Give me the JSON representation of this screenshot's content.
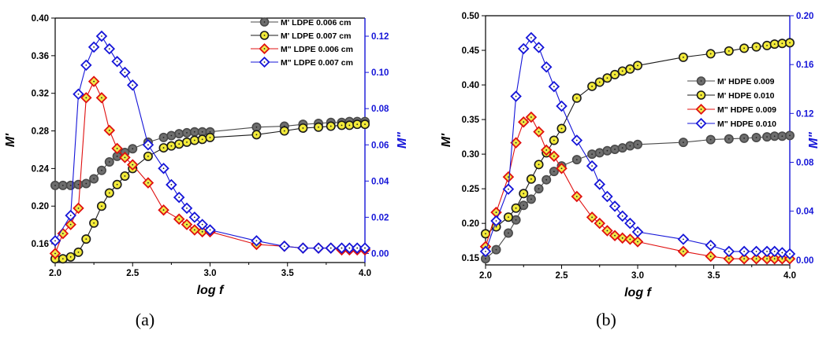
{
  "chart_data": [
    {
      "type": "line",
      "panel_label": "(a)",
      "xlabel": "log f",
      "ylabel_left": "M'",
      "ylabel_right": "M\"",
      "xlim": [
        2.0,
        4.0
      ],
      "ylim_left": [
        0.14,
        0.4
      ],
      "ylim_right": [
        -0.005,
        0.13
      ],
      "x_ticks": [
        "2.0",
        "2.5",
        "3.0",
        "3.5",
        "4.0"
      ],
      "x_tick_values": [
        2.0,
        2.5,
        3.0,
        3.5,
        4.0
      ],
      "y_left_ticks": [
        "0.16",
        "0.20",
        "0.24",
        "0.28",
        "0.32",
        "0.36",
        "0.40"
      ],
      "y_left_tick_values": [
        0.16,
        0.2,
        0.24,
        0.28,
        0.32,
        0.36,
        0.4
      ],
      "y_right_ticks": [
        "0.00",
        "0.02",
        "0.04",
        "0.06",
        "0.08",
        "0.10",
        "0.12"
      ],
      "y_right_tick_values": [
        0.0,
        0.02,
        0.04,
        0.06,
        0.08,
        0.1,
        0.12
      ],
      "legend_position": "top-right",
      "series": [
        {
          "name": "M' LDPE 0.006 cm",
          "axis": "left",
          "marker": "circle",
          "color": "#4a4a4a",
          "fill": "#6e6e6e",
          "x": [
            2.0,
            2.05,
            2.1,
            2.15,
            2.2,
            2.25,
            2.3,
            2.35,
            2.4,
            2.45,
            2.5,
            2.6,
            2.7,
            2.75,
            2.8,
            2.85,
            2.9,
            2.95,
            3.0,
            3.3,
            3.48,
            3.6,
            3.7,
            3.78,
            3.85,
            3.9,
            3.95,
            4.0
          ],
          "y": [
            0.222,
            0.222,
            0.222,
            0.223,
            0.224,
            0.229,
            0.238,
            0.247,
            0.253,
            0.257,
            0.261,
            0.268,
            0.273,
            0.275,
            0.277,
            0.278,
            0.279,
            0.279,
            0.279,
            0.284,
            0.285,
            0.287,
            0.288,
            0.289,
            0.289,
            0.29,
            0.29,
            0.29
          ]
        },
        {
          "name": "M' LDPE 0.007 cm",
          "axis": "left",
          "marker": "circle",
          "color": "#1a1a1a",
          "fill": "#f2ea3a",
          "x": [
            2.0,
            2.05,
            2.1,
            2.15,
            2.2,
            2.25,
            2.3,
            2.35,
            2.4,
            2.45,
            2.5,
            2.6,
            2.7,
            2.75,
            2.8,
            2.85,
            2.9,
            2.95,
            3.0,
            3.3,
            3.48,
            3.6,
            3.7,
            3.78,
            3.85,
            3.9,
            3.95,
            4.0
          ],
          "y": [
            0.144,
            0.144,
            0.146,
            0.151,
            0.165,
            0.182,
            0.2,
            0.214,
            0.223,
            0.232,
            0.24,
            0.253,
            0.262,
            0.264,
            0.266,
            0.268,
            0.27,
            0.271,
            0.273,
            0.276,
            0.28,
            0.283,
            0.284,
            0.285,
            0.286,
            0.286,
            0.287,
            0.287
          ]
        },
        {
          "name": "M\" LDPE 0.006 cm",
          "axis": "right",
          "marker": "diamond",
          "color": "#e01010",
          "fill": "#f0e84a",
          "x": [
            2.0,
            2.05,
            2.1,
            2.15,
            2.2,
            2.25,
            2.3,
            2.35,
            2.4,
            2.45,
            2.5,
            2.6,
            2.7,
            2.8,
            2.85,
            2.9,
            2.95,
            3.0,
            3.3,
            3.48,
            3.6,
            3.7,
            3.78,
            3.85,
            3.9,
            3.95,
            4.0
          ],
          "y": [
            0.0,
            0.011,
            0.016,
            0.025,
            0.086,
            0.095,
            0.086,
            0.068,
            0.058,
            0.053,
            0.049,
            0.039,
            0.024,
            0.019,
            0.016,
            0.013,
            0.012,
            0.012,
            0.005,
            0.004,
            0.003,
            0.003,
            0.003,
            0.002,
            0.002,
            0.002,
            0.002
          ]
        },
        {
          "name": "M\" LDPE 0.007 cm",
          "axis": "right",
          "marker": "diamond",
          "color": "#1515d8",
          "fill": "#ffffff",
          "x": [
            2.0,
            2.1,
            2.15,
            2.2,
            2.25,
            2.3,
            2.35,
            2.4,
            2.45,
            2.5,
            2.6,
            2.7,
            2.75,
            2.8,
            2.85,
            2.9,
            2.95,
            3.0,
            3.3,
            3.48,
            3.6,
            3.7,
            3.78,
            3.85,
            3.9,
            3.95,
            4.0
          ],
          "y": [
            0.007,
            0.021,
            0.088,
            0.104,
            0.114,
            0.12,
            0.113,
            0.106,
            0.1,
            0.093,
            0.06,
            0.047,
            0.038,
            0.031,
            0.025,
            0.02,
            0.016,
            0.013,
            0.007,
            0.004,
            0.003,
            0.003,
            0.003,
            0.003,
            0.003,
            0.003,
            0.003
          ]
        }
      ]
    },
    {
      "type": "line",
      "panel_label": "(b)",
      "xlabel": "log f",
      "ylabel_left": "M'",
      "ylabel_right": "M\"",
      "xlim": [
        2.0,
        4.0
      ],
      "ylim_left": [
        0.14,
        0.5
      ],
      "ylim_right": [
        -0.004,
        0.2
      ],
      "x_ticks": [
        "2.0",
        "2.5",
        "3.0",
        "3.5",
        "4.0"
      ],
      "x_tick_values": [
        2.0,
        2.5,
        3.0,
        3.5,
        4.0
      ],
      "y_left_ticks": [
        "0.15",
        "0.20",
        "0.25",
        "0.30",
        "0.35",
        "0.40",
        "0.45",
        "0.50"
      ],
      "y_left_tick_values": [
        0.15,
        0.2,
        0.25,
        0.3,
        0.35,
        0.4,
        0.45,
        0.5
      ],
      "y_right_ticks": [
        "0.00",
        "0.04",
        "0.08",
        "0.12",
        "0.16",
        "0.20"
      ],
      "y_right_tick_values": [
        0.0,
        0.04,
        0.08,
        0.12,
        0.16,
        0.2
      ],
      "legend_position": "center-right",
      "series": [
        {
          "name": "M' HDPE 0.009",
          "axis": "left",
          "marker": "circle",
          "color": "#4a4a4a",
          "fill": "#6e6e6e",
          "x": [
            2.0,
            2.07,
            2.15,
            2.2,
            2.25,
            2.3,
            2.35,
            2.4,
            2.45,
            2.5,
            2.6,
            2.7,
            2.75,
            2.8,
            2.85,
            2.9,
            2.95,
            3.0,
            3.3,
            3.48,
            3.6,
            3.7,
            3.78,
            3.85,
            3.9,
            3.95,
            4.0
          ],
          "y": [
            0.149,
            0.162,
            0.186,
            0.205,
            0.226,
            0.235,
            0.25,
            0.263,
            0.275,
            0.283,
            0.292,
            0.3,
            0.302,
            0.305,
            0.307,
            0.309,
            0.312,
            0.314,
            0.317,
            0.321,
            0.322,
            0.323,
            0.324,
            0.325,
            0.326,
            0.326,
            0.327
          ]
        },
        {
          "name": "M' HDPE 0.010",
          "axis": "left",
          "marker": "circle",
          "color": "#1a1a1a",
          "fill": "#f2ea3a",
          "x": [
            2.0,
            2.07,
            2.15,
            2.2,
            2.25,
            2.3,
            2.35,
            2.4,
            2.45,
            2.5,
            2.6,
            2.7,
            2.75,
            2.8,
            2.85,
            2.9,
            2.95,
            3.0,
            3.3,
            3.48,
            3.6,
            3.7,
            3.78,
            3.85,
            3.9,
            3.95,
            4.0
          ],
          "y": [
            0.185,
            0.195,
            0.209,
            0.222,
            0.243,
            0.264,
            0.285,
            0.302,
            0.32,
            0.337,
            0.381,
            0.398,
            0.404,
            0.41,
            0.415,
            0.42,
            0.423,
            0.428,
            0.44,
            0.445,
            0.449,
            0.453,
            0.455,
            0.457,
            0.459,
            0.46,
            0.461
          ]
        },
        {
          "name": "M\" HDPE 0.009",
          "axis": "right",
          "marker": "diamond",
          "color": "#e01010",
          "fill": "#f0e84a",
          "x": [
            2.0,
            2.07,
            2.15,
            2.2,
            2.25,
            2.3,
            2.35,
            2.4,
            2.45,
            2.5,
            2.6,
            2.7,
            2.75,
            2.8,
            2.85,
            2.9,
            2.95,
            3.0,
            3.3,
            3.48,
            3.6,
            3.7,
            3.78,
            3.85,
            3.9,
            3.95,
            4.0
          ],
          "y": [
            0.011,
            0.039,
            0.068,
            0.096,
            0.113,
            0.117,
            0.105,
            0.09,
            0.085,
            0.075,
            0.052,
            0.035,
            0.03,
            0.024,
            0.02,
            0.018,
            0.017,
            0.015,
            0.007,
            0.003,
            0.001,
            0.001,
            0.001,
            0.001,
            0.001,
            0.001,
            0.001
          ]
        },
        {
          "name": "M\" HDPE 0.010",
          "axis": "right",
          "marker": "diamond",
          "color": "#1515d8",
          "fill": "#ffffff",
          "x": [
            2.0,
            2.07,
            2.15,
            2.2,
            2.25,
            2.3,
            2.35,
            2.4,
            2.45,
            2.5,
            2.6,
            2.7,
            2.75,
            2.8,
            2.85,
            2.9,
            2.95,
            3.0,
            3.3,
            3.48,
            3.6,
            3.7,
            3.78,
            3.85,
            3.9,
            3.95,
            4.0
          ],
          "y": [
            0.007,
            0.032,
            0.058,
            0.134,
            0.173,
            0.182,
            0.174,
            0.158,
            0.142,
            0.126,
            0.098,
            0.077,
            0.062,
            0.052,
            0.044,
            0.036,
            0.03,
            0.023,
            0.017,
            0.012,
            0.007,
            0.007,
            0.007,
            0.007,
            0.007,
            0.006,
            0.005
          ]
        }
      ]
    }
  ]
}
